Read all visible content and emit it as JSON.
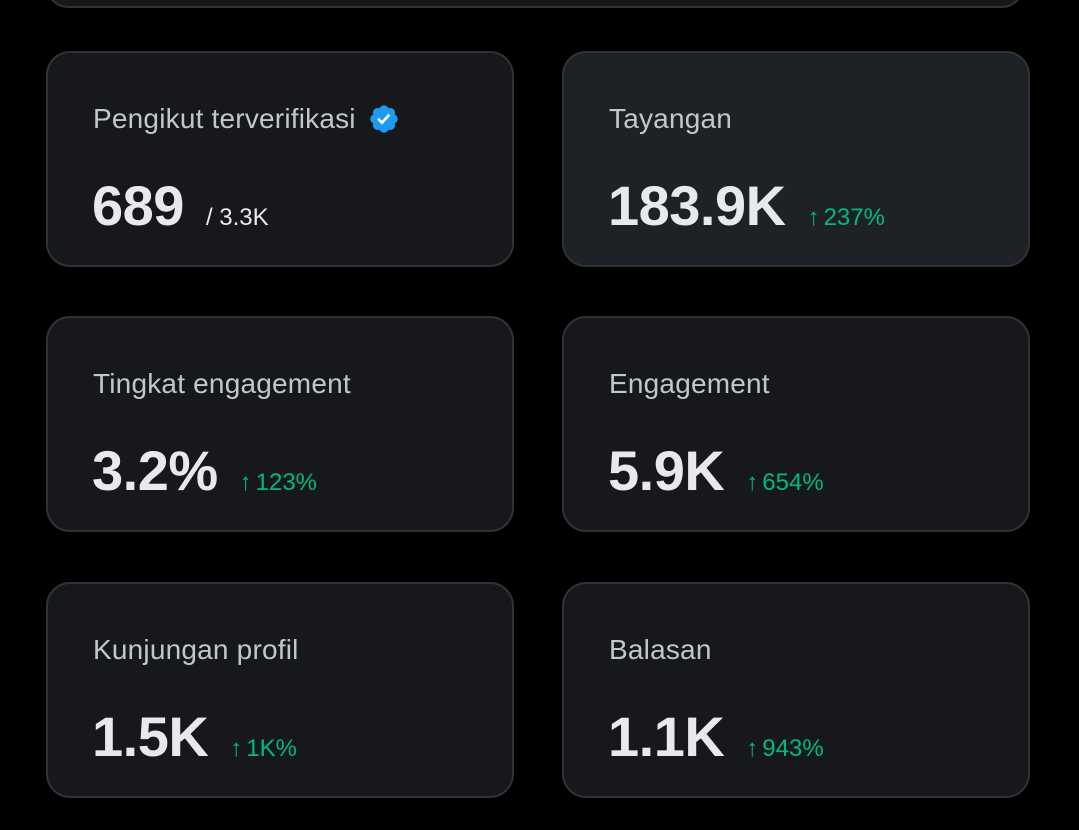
{
  "colors": {
    "background": "#000000",
    "card_background": "#16181c",
    "card_border": "#2f3336",
    "label_text": "#c4c7ca",
    "value_text": "#e7e9ea",
    "positive_delta": "#00ba7c",
    "verified_badge": "#1d9bf0"
  },
  "cards": [
    {
      "label": "Pengikut terverifikasi",
      "value": "689",
      "secondary": "/ 3.3K",
      "icon": "verified-badge-icon"
    },
    {
      "label": "Tayangan",
      "value": "183.9K",
      "delta_arrow": "↑",
      "delta": "237%"
    },
    {
      "label": "Tingkat engagement",
      "value": "3.2%",
      "delta_arrow": "↑",
      "delta": "123%"
    },
    {
      "label": "Engagement",
      "value": "5.9K",
      "delta_arrow": "↑",
      "delta": "654%"
    },
    {
      "label": "Kunjungan profil",
      "value": "1.5K",
      "delta_arrow": "↑",
      "delta": "1K%"
    },
    {
      "label": "Balasan",
      "value": "1.1K",
      "delta_arrow": "↑",
      "delta": "943%"
    }
  ]
}
